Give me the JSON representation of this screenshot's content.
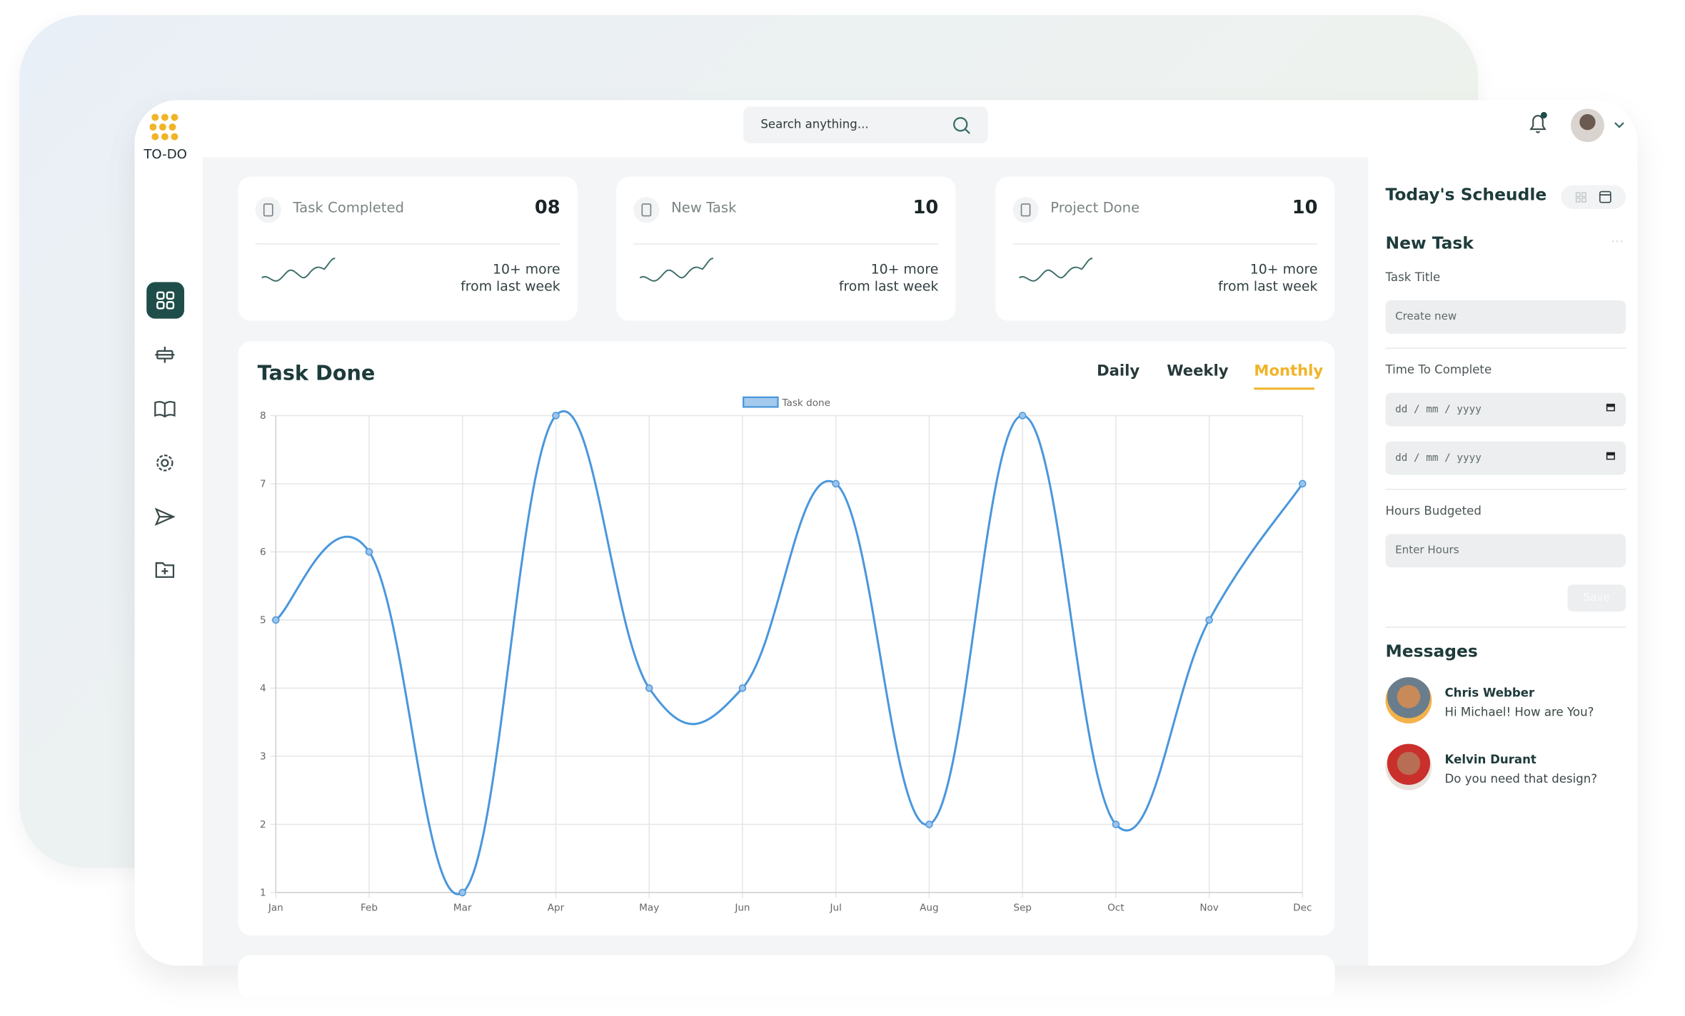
{
  "brand": "TO-DO",
  "search": {
    "placeholder": "Search anything..."
  },
  "stats": [
    {
      "label": "Task Completed",
      "value": "08",
      "change": "10+ more",
      "period": "from last week"
    },
    {
      "label": "New Task",
      "value": "10",
      "change": "10+ more",
      "period": "from last week"
    },
    {
      "label": "Project Done",
      "value": "10",
      "change": "10+ more",
      "period": "from last week"
    }
  ],
  "chart_data": {
    "type": "line",
    "title": "Task Done",
    "tabs": [
      "Daily",
      "Weekly",
      "Monthly"
    ],
    "active_tab": "Monthly",
    "categories": [
      "Jan",
      "Feb",
      "Mar",
      "Apr",
      "May",
      "Jun",
      "Jul",
      "Aug",
      "Sep",
      "Oct",
      "Nov",
      "Dec"
    ],
    "series": [
      {
        "name": "Task done",
        "color": "#4a97dc",
        "values": [
          5,
          6,
          1,
          8,
          4,
          4,
          7,
          2,
          8,
          2,
          5,
          7
        ]
      }
    ],
    "ylim": [
      1,
      8
    ],
    "yticks": [
      1,
      2,
      3,
      4,
      5,
      6,
      7,
      8
    ],
    "grid": true
  },
  "schedule": {
    "title": "Today's Scheudle",
    "form_title": "New Task",
    "task_title": {
      "label": "Task Title",
      "placeholder": "Create new"
    },
    "time": {
      "label": "Time To Complete",
      "placeholders": [
        "dd / mm / yyyy",
        "dd / mm / yyyy"
      ]
    },
    "hours": {
      "label": "Hours Budgeted",
      "placeholder": "Enter Hours"
    },
    "button": "Save"
  },
  "messages": {
    "title": "Messages",
    "items": [
      {
        "name": "Chris Webber",
        "text": "Hi Michael! How are You?"
      },
      {
        "name": "Kelvin Durant",
        "text": "Do you need that design?"
      }
    ]
  }
}
